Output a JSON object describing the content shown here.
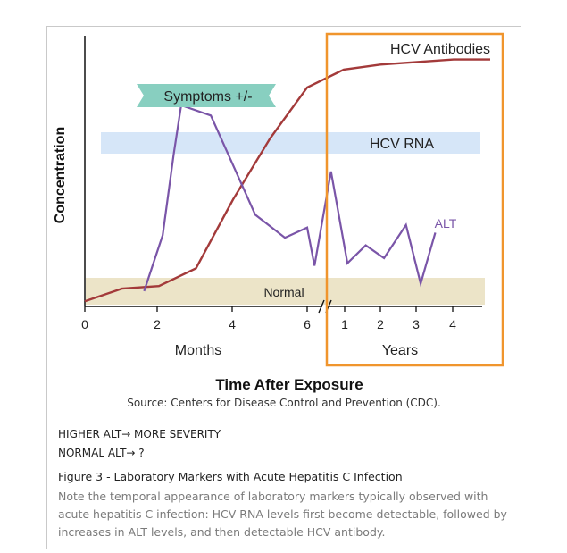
{
  "chart_data": {
    "type": "line",
    "title": "",
    "xlabel": "Time After Exposure",
    "ylabel": "Concentration",
    "x_segments": [
      {
        "label": "Months",
        "ticks": [
          "0",
          "2",
          "4",
          "6"
        ]
      },
      {
        "label": "Years",
        "ticks": [
          "1",
          "2",
          "3",
          "4"
        ]
      }
    ],
    "bands": {
      "hcv_rna": "HCV RNA",
      "normal": "Normal"
    },
    "symptoms_label": "Symptoms +/-",
    "series": [
      {
        "name": "HCV Antibodies",
        "color": "#a33a3a",
        "points": [
          [
            0,
            0.02
          ],
          [
            1,
            0.07
          ],
          [
            2,
            0.08
          ],
          [
            3,
            0.15
          ],
          [
            4,
            0.42
          ],
          [
            5,
            0.66
          ],
          [
            6,
            0.86
          ],
          [
            7,
            0.93
          ],
          [
            8,
            0.95
          ],
          [
            9,
            0.96
          ],
          [
            10,
            0.97
          ],
          [
            11,
            0.97
          ]
        ]
      },
      {
        "name": "ALT",
        "color": "#7a55a8",
        "points": [
          [
            1.6,
            0.06
          ],
          [
            2.1,
            0.28
          ],
          [
            2.4,
            0.6
          ],
          [
            2.6,
            0.79
          ],
          [
            3.4,
            0.75
          ],
          [
            4.6,
            0.36
          ],
          [
            5.4,
            0.27
          ],
          [
            6.0,
            0.31
          ],
          [
            6.2,
            0.16
          ],
          [
            6.65,
            0.53
          ],
          [
            7.1,
            0.17
          ],
          [
            7.6,
            0.24
          ],
          [
            8.1,
            0.19
          ],
          [
            8.7,
            0.32
          ],
          [
            9.1,
            0.09
          ],
          [
            9.5,
            0.29
          ]
        ]
      }
    ]
  },
  "annotations": {
    "source": "Source: Centers for Disease Control and Prevention (CDC).",
    "key_line_1": "HIGHER ALT→ MORE SEVERITY",
    "key_line_2": "NORMAL ALT→ ?"
  },
  "caption": {
    "title": "Figure 3 - Laboratory Markers with Acute Hepatitis C Infection",
    "body": "Note the temporal appearance of laboratory markers typically observed with acute hepatitis C infection: HCV RNA levels first become detectable, followed by increases in ALT levels, and then detectable HCV antibody."
  },
  "colors": {
    "hcv_rna_band": "#d6e6f8",
    "normal_band": "#ece4c8",
    "symptoms_banner": "#88cfc0",
    "years_box": "#f0952d",
    "antibody_line": "#a33a3a",
    "alt_line": "#7a55a8"
  }
}
